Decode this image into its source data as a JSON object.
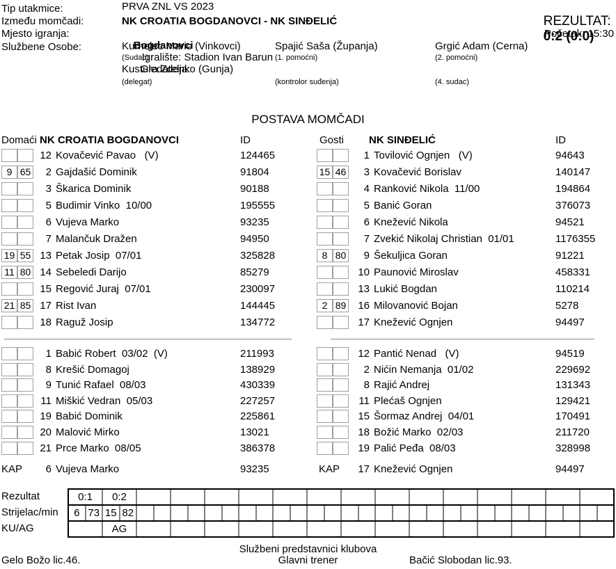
{
  "header": {
    "tip_label": "Tip utakmice:",
    "tip_value": "PRVA ZNL VS 2023",
    "rezultat_label": "REZULTAT: ",
    "rezultat_value": "0:2 (0:0)",
    "izmedu_label": "Između momčadi:",
    "izmedu_value": "NK CROATIA BOGDANOVCI - NK SINĐELIĆ",
    "mjesto_label": "Mjesto igranja:",
    "mjesto_value": "Bogdanovci",
    "igraliste": "Igralište: Stadion Ivan Barun",
    "gledatelja": "Gledatelja:",
    "pocetak": "Početak: 15:30",
    "osobe_label": "Službene Osobe:",
    "officials": [
      {
        "name": "Kurhelec Mario (Vinkovci)",
        "role": "(Sudac)",
        "name2": "Kustura Zdenko (Gunja)",
        "role2": "(delegat)"
      },
      {
        "name": "Spajić Saša (Županja)",
        "role": "(1. pomoćni)",
        "name2": "",
        "role2": "(kontrolor suđenja)"
      },
      {
        "name": "Grgić Adam (Cerna)",
        "role": "(2. pomoćni)",
        "name2": "",
        "role2": "(4. sudac)"
      }
    ]
  },
  "lineup": {
    "title": "POSTAVA MOMČADI",
    "id_label": "ID",
    "kap_label": "KAP",
    "home": {
      "side": "Domaći",
      "name": "NK CROATIA BOGDANOVCI",
      "starters": [
        {
          "b1": "",
          "b2": "",
          "num": "12",
          "name": "Kovačević Pavao   (V)",
          "id": "124465"
        },
        {
          "b1": "9",
          "b2": "65",
          "num": "2",
          "name": "Gajdašić Dominik",
          "id": "91804"
        },
        {
          "b1": "",
          "b2": "",
          "num": "3",
          "name": "Škarica Dominik",
          "id": "90188"
        },
        {
          "b1": "",
          "b2": "",
          "num": "5",
          "name": "Budimir Vinko  10/00",
          "id": "195555"
        },
        {
          "b1": "",
          "b2": "",
          "num": "6",
          "name": "Vujeva Marko",
          "id": "93235"
        },
        {
          "b1": "",
          "b2": "",
          "num": "7",
          "name": "Malančuk Dražen",
          "id": "94950"
        },
        {
          "b1": "19",
          "b2": "55",
          "num": "13",
          "name": "Petak Josip  07/01",
          "id": "325828"
        },
        {
          "b1": "11",
          "b2": "80",
          "num": "14",
          "name": "Sebeledi Darijo",
          "id": "85279"
        },
        {
          "b1": "",
          "b2": "",
          "num": "15",
          "name": "Regović Juraj  07/01",
          "id": "230097"
        },
        {
          "b1": "21",
          "b2": "85",
          "num": "17",
          "name": "Rist Ivan",
          "id": "144445"
        },
        {
          "b1": "",
          "b2": "",
          "num": "18",
          "name": "Raguž Josip",
          "id": "134772"
        }
      ],
      "subs": [
        {
          "b1": "",
          "b2": "",
          "num": "1",
          "name": "Babić Robert  03/02  (V)",
          "id": "211993"
        },
        {
          "b1": "",
          "b2": "",
          "num": "8",
          "name": "Krešić Domagoj",
          "id": "138929"
        },
        {
          "b1": "",
          "b2": "",
          "num": "9",
          "name": "Tunić Rafael  08/03",
          "id": "430339"
        },
        {
          "b1": "",
          "b2": "",
          "num": "11",
          "name": "Miškić Vedran  05/03",
          "id": "227257"
        },
        {
          "b1": "",
          "b2": "",
          "num": "19",
          "name": "Babić Dominik",
          "id": "225861"
        },
        {
          "b1": "",
          "b2": "",
          "num": "20",
          "name": "Malović Mirko",
          "id": "13021"
        },
        {
          "b1": "",
          "b2": "",
          "num": "21",
          "name": "Prce Marko  08/05",
          "id": "386378"
        }
      ],
      "kap": {
        "num": "6",
        "name": "Vujeva Marko",
        "id": "93235"
      }
    },
    "away": {
      "side": "Gosti",
      "name": "NK SINĐELIĆ",
      "starters": [
        {
          "b1": "",
          "b2": "",
          "num": "1",
          "name": "Tovilović Ognjen   (V)",
          "id": "94643"
        },
        {
          "b1": "15",
          "b2": "46",
          "num": "3",
          "name": "Kovačević Borislav",
          "id": "140147"
        },
        {
          "b1": "",
          "b2": "",
          "num": "4",
          "name": "Ranković Nikola  11/00",
          "id": "194864"
        },
        {
          "b1": "",
          "b2": "",
          "num": "5",
          "name": "Banić Goran",
          "id": "376073"
        },
        {
          "b1": "",
          "b2": "",
          "num": "6",
          "name": "Knežević Nikola",
          "id": "94521"
        },
        {
          "b1": "",
          "b2": "",
          "num": "7",
          "name": "Zvekić Nikolaj Christian  01/01",
          "id": "1176355"
        },
        {
          "b1": "8",
          "b2": "80",
          "num": "9",
          "name": "Šekuljica Goran",
          "id": "91221"
        },
        {
          "b1": "",
          "b2": "",
          "num": "10",
          "name": "Paunović Miroslav",
          "id": "458331"
        },
        {
          "b1": "",
          "b2": "",
          "num": "13",
          "name": "Lukić Bogdan",
          "id": "110214"
        },
        {
          "b1": "2",
          "b2": "89",
          "num": "16",
          "name": "Milovanović Bojan",
          "id": "5278"
        },
        {
          "b1": "",
          "b2": "",
          "num": "17",
          "name": "Knežević Ognjen",
          "id": "94497"
        }
      ],
      "subs": [
        {
          "b1": "",
          "b2": "",
          "num": "12",
          "name": "Pantić Nenad   (V)",
          "id": "94519"
        },
        {
          "b1": "",
          "b2": "",
          "num": "2",
          "name": "Nićin Nemanja  01/02",
          "id": "229692"
        },
        {
          "b1": "",
          "b2": "",
          "num": "8",
          "name": "Rajić Andrej",
          "id": "131343"
        },
        {
          "b1": "",
          "b2": "",
          "num": "11",
          "name": "Plećaš Ognjen",
          "id": "129421"
        },
        {
          "b1": "",
          "b2": "",
          "num": "15",
          "name": "Šormaz Andrej  04/01",
          "id": "170491"
        },
        {
          "b1": "",
          "b2": "",
          "num": "18",
          "name": "Božić Marko  02/03",
          "id": "211720"
        },
        {
          "b1": "",
          "b2": "",
          "num": "19",
          "name": "Palić Peđa  08/03",
          "id": "328998"
        }
      ],
      "kap": {
        "num": "17",
        "name": "Knežević Ognjen",
        "id": "94497"
      }
    }
  },
  "result_table": {
    "labels": [
      "Rezultat",
      "Strijelac/min",
      "KU/AG"
    ],
    "cols": 16,
    "score_row": [
      "0:1",
      "0:2"
    ],
    "scorer_row": [
      [
        "6",
        "73"
      ],
      [
        "15",
        "82"
      ]
    ],
    "kuag_row": [
      "",
      "AG"
    ]
  },
  "footer": {
    "title": "Službeni predstavnici klubova",
    "left": "Gelo Božo lic.46.",
    "center": "Glavni trener",
    "right": "Bačić Slobodan lic.93."
  }
}
